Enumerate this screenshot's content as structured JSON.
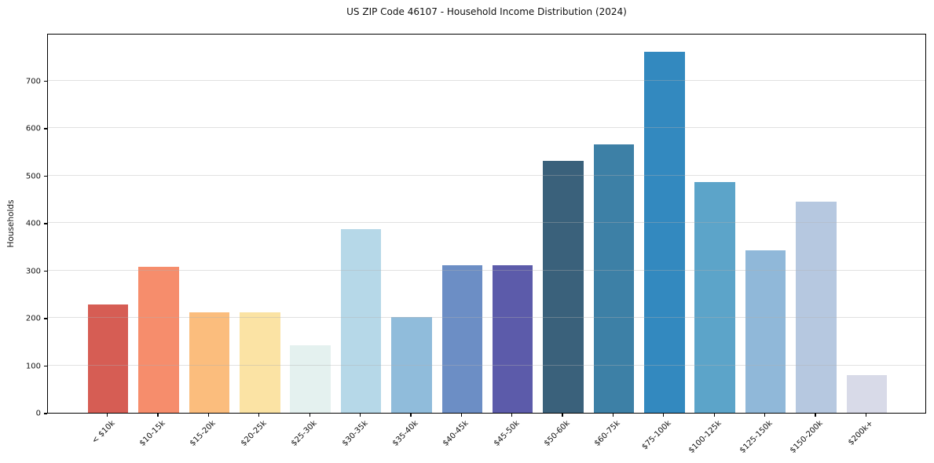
{
  "chart_data": {
    "type": "bar",
    "title": "US ZIP Code 46107 - Household Income Distribution (2024)",
    "xlabel": "",
    "ylabel": "Households",
    "categories": [
      "< $10k",
      "$10-15k",
      "$15-20k",
      "$20-25k",
      "$25-30k",
      "$30-35k",
      "$35-40k",
      "$40-45k",
      "$45-50k",
      "$50-60k",
      "$60-75k",
      "$75-100k",
      "$100-125k",
      "$125-150k",
      "$150-200k",
      "$200k+"
    ],
    "values": [
      228,
      307,
      212,
      212,
      142,
      387,
      202,
      311,
      311,
      531,
      565,
      760,
      486,
      343,
      444,
      80
    ],
    "bar_colors": [
      "#d65d54",
      "#f68d6c",
      "#fbbd7d",
      "#fbe3a4",
      "#e4f1ef",
      "#b6d8e8",
      "#90bcdb",
      "#6c8ec5",
      "#5c5baa",
      "#3a617b",
      "#3d80a6",
      "#3389bf",
      "#5ca4c9",
      "#90b8d9",
      "#b6c8e0",
      "#d8dae8"
    ],
    "ylim": [
      0,
      800
    ],
    "yticks": [
      0,
      100,
      200,
      300,
      400,
      500,
      600,
      700
    ],
    "grid": "horizontal",
    "gridline_color": "#e8e8e8",
    "legend": "none",
    "x_tick_rotation_deg": 45
  }
}
